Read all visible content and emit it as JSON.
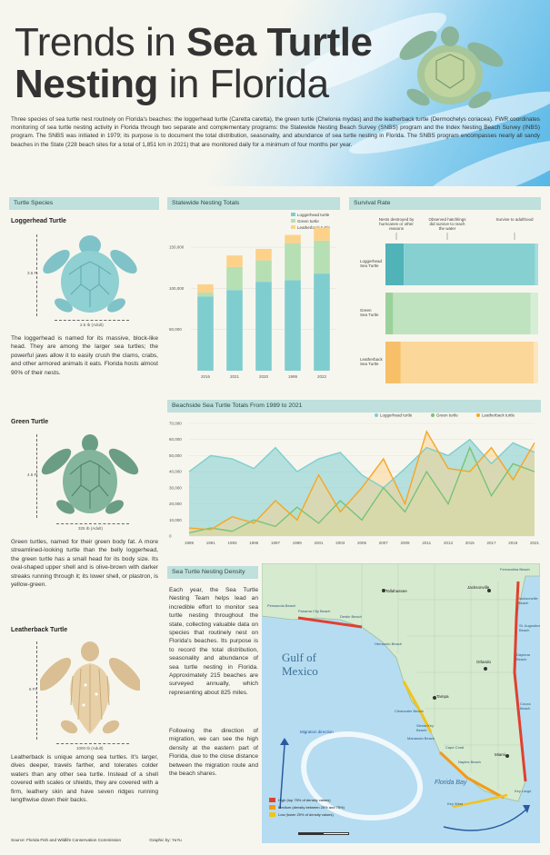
{
  "title": {
    "light1": "Trends in ",
    "bold1": "Sea Turtle",
    "bold2": "Nesting",
    "light2": " in Florida"
  },
  "intro": "Three species of sea turtle nest routinely on Florida's beaches: the loggerhead turtle (Caretta caretta), the green turtle (Chelonia mydas) and the leatherback turtle (Dermochelys coriacea). FWR coordinates monitoring of sea turtle nesting activity in Florida through two separate and complementary programs: the Statewide Nesting Beach Survey (SNBS) program and the Index Nesting Beach Survey (INBS) program. The SNBS was initiated in 1979; its purpose is to document the total distribution, seasonality, and abundance of sea turtle nesting in Florida. The SNBS program encompasses nearly all sandy beaches in the State (228 beach sites for a total of 1,851 km in 2021) that are monitored daily for a minimum of four months per year.",
  "species": {
    "header": "Turtle Species",
    "loggerhead": {
      "name": "Loggerhead Turtle",
      "height": "3.6 Ft",
      "width": "2.5 Ib (Adult)",
      "text": "The loggerhead is named for its massive, block-like head. They are among the larger sea turtles; the powerful jaws allow it to easily crush the clams, crabs, and other armored animals it eats. Florida hosts almost 90% of their nests."
    },
    "green": {
      "name": "Green Turtle",
      "height": "4.5 Ft",
      "width": "325 Ib (Adult)",
      "text": "Green turtles, named for their green body fat. A more streamlined-looking turtle than the belly loggerhead, the green turtle has a small head for its body size. Its oval-shaped upper shell and is olive-brown with darker streaks running through it; its lower shell, or plastron, is yellow-green."
    },
    "leatherback": {
      "name": "Leatherback Turtle",
      "height": "6 Ft",
      "width": "1000 Ib (Adult)",
      "text": "Leatherback is unique among sea turtles. It's larger, dives deeper, travels farther, and tolerates colder waters than any other sea turtle. Instead of a shell covered with scales or shields, they are covered with a firm, leathery skin and have seven ridges running lengthwise down their backs."
    }
  },
  "colors": {
    "loggerhead": "#7fcdcf",
    "green": "#b6dfb4",
    "leatherback": "#fcd28b",
    "leatherback_line": "#f6a623",
    "green_line": "#79c27a"
  },
  "statewide": {
    "header": "Statewide Nesting Totals",
    "legend": [
      "Loggerhead turtle",
      "Green turtle",
      "Leatherback turtle"
    ]
  },
  "survival": {
    "header": "Survival Rate",
    "col_labels": [
      "Nests destroyed by hurricanes or other reasons",
      "Observed hatchlings did survive to reach the water",
      "Survive to adulthood"
    ],
    "rows": [
      "Loggerhead Sea Turtle",
      "Green Sea Turtle",
      "Leatherback Sea Turtle"
    ]
  },
  "beachside": {
    "header": "Beachside Sea Turtle Totals From 1989 to 2021",
    "legend": [
      "Loggerhead turtle",
      "Green turtle",
      "Leatherback turtle"
    ]
  },
  "chart_data": [
    {
      "type": "bar",
      "categories": [
        "2016",
        "2021",
        "2020",
        "1999",
        "2022"
      ],
      "series": [
        {
          "name": "Loggerhead turtle",
          "values": [
            90000,
            98000,
            108000,
            110000,
            118000
          ]
        },
        {
          "name": "Green turtle",
          "values": [
            5000,
            28000,
            26000,
            45000,
            40000
          ]
        },
        {
          "name": "Leatherback turtle",
          "values": [
            10000,
            14000,
            14000,
            10000,
            16000
          ]
        }
      ],
      "yticks": [
        "150,000",
        "100,000",
        "50,000"
      ],
      "ylim": [
        0,
        170000
      ]
    },
    {
      "type": "bar",
      "rows": [
        "Loggerhead Sea Turtle",
        "Green Sea Turtle",
        "Leatherback Sea Turtle"
      ],
      "segments": [
        [
          0.12,
          0.86,
          0.02
        ],
        [
          0.05,
          0.9,
          0.05
        ],
        [
          0.1,
          0.87,
          0.03
        ]
      ]
    },
    {
      "type": "line",
      "x": [
        "1989",
        "1991",
        "1993",
        "1995",
        "1997",
        "1999",
        "2001",
        "2003",
        "2005",
        "2007",
        "2009",
        "2011",
        "2013",
        "2015",
        "2017",
        "2019",
        "2021"
      ],
      "series": [
        {
          "name": "Loggerhead turtle",
          "values": [
            40000,
            50000,
            48000,
            42000,
            55000,
            40000,
            48000,
            52000,
            38000,
            30000,
            42000,
            55000,
            50000,
            60000,
            45000,
            58000,
            52000
          ]
        },
        {
          "name": "Green turtle",
          "values": [
            2000,
            5000,
            3000,
            10000,
            6000,
            18000,
            8000,
            22000,
            10000,
            30000,
            15000,
            40000,
            20000,
            55000,
            25000,
            45000,
            40000
          ]
        },
        {
          "name": "Leatherback turtle",
          "values": [
            5000,
            4000,
            12000,
            8000,
            22000,
            10000,
            38000,
            15000,
            30000,
            48000,
            20000,
            65000,
            42000,
            40000,
            55000,
            35000,
            58000
          ]
        }
      ],
      "yticks": [
        "70,000",
        "60,000",
        "50,000",
        "40,000",
        "30,000",
        "20,000",
        "10,000",
        "0"
      ],
      "xticks": [
        "1989",
        "1991",
        "1993",
        "1995",
        "1997",
        "1999",
        "2001",
        "2003",
        "2005",
        "2007",
        "2009",
        "2011",
        "2013",
        "2015",
        "2017",
        "2019",
        "2021"
      ],
      "ylim": [
        0,
        70000
      ]
    }
  ],
  "density": {
    "header": "Sea Turtle Nesting Density",
    "p1": "Each year, the Sea Turtle Nesting Team helps lead an incredible effort to monitor sea turtle nesting throughout the state, collecting valuable data on species that routinely nest on Florida's beaches. Its purpose is to record the total distribution, seasonality and abundance of sea turtle nesting in Florida. Approximately 215 beaches are surveyed annually, which representing about 825 miles.",
    "p2": "Following the direction of migration, we can see the high density at the eastern part of Florida, due to the close distance between the migration route and the beach shares."
  },
  "map": {
    "gulf": "Gulf of Mexico",
    "florida_bay": "Florida Bay",
    "migration": "Migration direction",
    "cities": [
      "Tallahassee",
      "Jacksonville",
      "Tampa",
      "Orlando",
      "Miami"
    ],
    "beaches": [
      "Panama City Beach",
      "Destin Beach",
      "Pensacola Beach",
      "Jacksonville Beach",
      "St. Augustine Beach",
      "Daytona Beach",
      "Cocoa Beach",
      "Clearwater Beach",
      "Siesta Key Beach",
      "Cape Coral",
      "Naples Beach",
      "Key Largo",
      "Key West",
      "Manasota Beach",
      "Hernando Beach",
      "Fernandina Beach"
    ],
    "legend": [
      "High (top 75% of density values)",
      "Medium (density between 25% and 75%)",
      "Low (lower 25% of density values)"
    ]
  },
  "footer": {
    "source": "Source: Florida Fish and Wildlife Conservation Commission",
    "graphic": "Graphic by: YuYu"
  }
}
